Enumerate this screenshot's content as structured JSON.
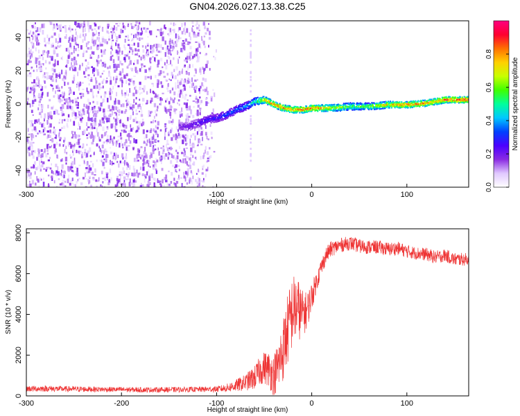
{
  "title": "GN04.2026.027.13.38.C25",
  "chart_data": [
    {
      "type": "heatmap",
      "name": "spectrogram",
      "xlabel": "Height of straight line (km)",
      "ylabel": "Frequency (Hz)",
      "xlim": [
        -300,
        165
      ],
      "ylim": [
        -50,
        50
      ],
      "x_ticks": [
        -300,
        -200,
        -100,
        0,
        100
      ],
      "y_ticks": [
        -40,
        -20,
        0,
        20,
        40
      ],
      "grid": false,
      "colorbar": {
        "label": "Normalized spectral amplitude",
        "range": [
          0,
          1
        ],
        "ticks": [
          0.0,
          0.2,
          0.4,
          0.6,
          0.8
        ],
        "tick_labels": [
          "0.0",
          "0.2",
          "0.4",
          "0.6",
          "0.8"
        ],
        "colors": [
          "#ffffff",
          "#e0c8ff",
          "#8a2be2",
          "#4b00ff",
          "#0040ff",
          "#00c8ff",
          "#00ff9c",
          "#40ff00",
          "#c8ff00",
          "#ffd000",
          "#ff7000",
          "#ff0030",
          "#ff0080"
        ]
      },
      "noise_region": {
        "x_range": [
          -300,
          -105
        ],
        "amplitude_range": [
          0.05,
          0.2
        ]
      },
      "dead_columns_x": [
        -65
      ],
      "signal_ridge": {
        "x": [
          -140,
          -130,
          -120,
          -110,
          -100,
          -90,
          -80,
          -70,
          -60,
          -50,
          -40,
          -30,
          -20,
          -10,
          0,
          20,
          40,
          60,
          80,
          100,
          120,
          130,
          140,
          165
        ],
        "frequency": [
          -13,
          -13,
          -11,
          -9,
          -8,
          -6,
          -3,
          -1,
          2,
          3,
          0,
          -2,
          -3,
          -3,
          -2,
          -2,
          -1,
          -1,
          0,
          0,
          1,
          2,
          3,
          3
        ],
        "amplitude": [
          0.2,
          0.22,
          0.25,
          0.28,
          0.3,
          0.33,
          0.36,
          0.4,
          0.55,
          0.75,
          0.82,
          0.8,
          0.82,
          0.85,
          0.86,
          0.72,
          0.58,
          0.62,
          0.75,
          0.85,
          0.82,
          0.78,
          0.88,
          0.9
        ]
      }
    },
    {
      "type": "line",
      "name": "snr",
      "xlabel": "Height of straight line (km)",
      "ylabel": "SNR (10 * v/v)",
      "xlim": [
        -300,
        165
      ],
      "ylim": [
        0,
        8200
      ],
      "x_ticks": [
        -300,
        -200,
        -100,
        0,
        100
      ],
      "y_ticks": [
        0,
        2000,
        4000,
        6000,
        8000
      ],
      "grid": false,
      "series": [
        {
          "name": "SNR",
          "color": "#ee3333",
          "x": [
            -300,
            -280,
            -260,
            -240,
            -220,
            -200,
            -180,
            -160,
            -140,
            -120,
            -100,
            -90,
            -80,
            -70,
            -60,
            -55,
            -50,
            -45,
            -40,
            -35,
            -30,
            -25,
            -20,
            -15,
            -10,
            -5,
            0,
            5,
            10,
            15,
            20,
            30,
            40,
            50,
            60,
            70,
            80,
            90,
            100,
            110,
            120,
            130,
            140,
            150,
            165
          ],
          "values": [
            350,
            360,
            340,
            330,
            320,
            310,
            300,
            300,
            310,
            320,
            330,
            380,
            500,
            650,
            900,
            1200,
            1400,
            1300,
            1000,
            1500,
            2300,
            3300,
            4200,
            4300,
            4000,
            4200,
            4900,
            5600,
            6300,
            6900,
            7200,
            7400,
            7500,
            7350,
            7300,
            7300,
            7200,
            7250,
            7100,
            7000,
            6950,
            6800,
            6900,
            6700,
            6700
          ],
          "noise_amplitude": [
            150,
            150,
            140,
            140,
            130,
            130,
            130,
            130,
            130,
            130,
            150,
            200,
            300,
            400,
            600,
            700,
            800,
            900,
            1000,
            1300,
            1600,
            1800,
            1800,
            1600,
            1200,
            900,
            700,
            500,
            450,
            400,
            380,
            350,
            350,
            350,
            340,
            340,
            340,
            330,
            330,
            320,
            320,
            320,
            320,
            320,
            320
          ]
        }
      ]
    }
  ]
}
